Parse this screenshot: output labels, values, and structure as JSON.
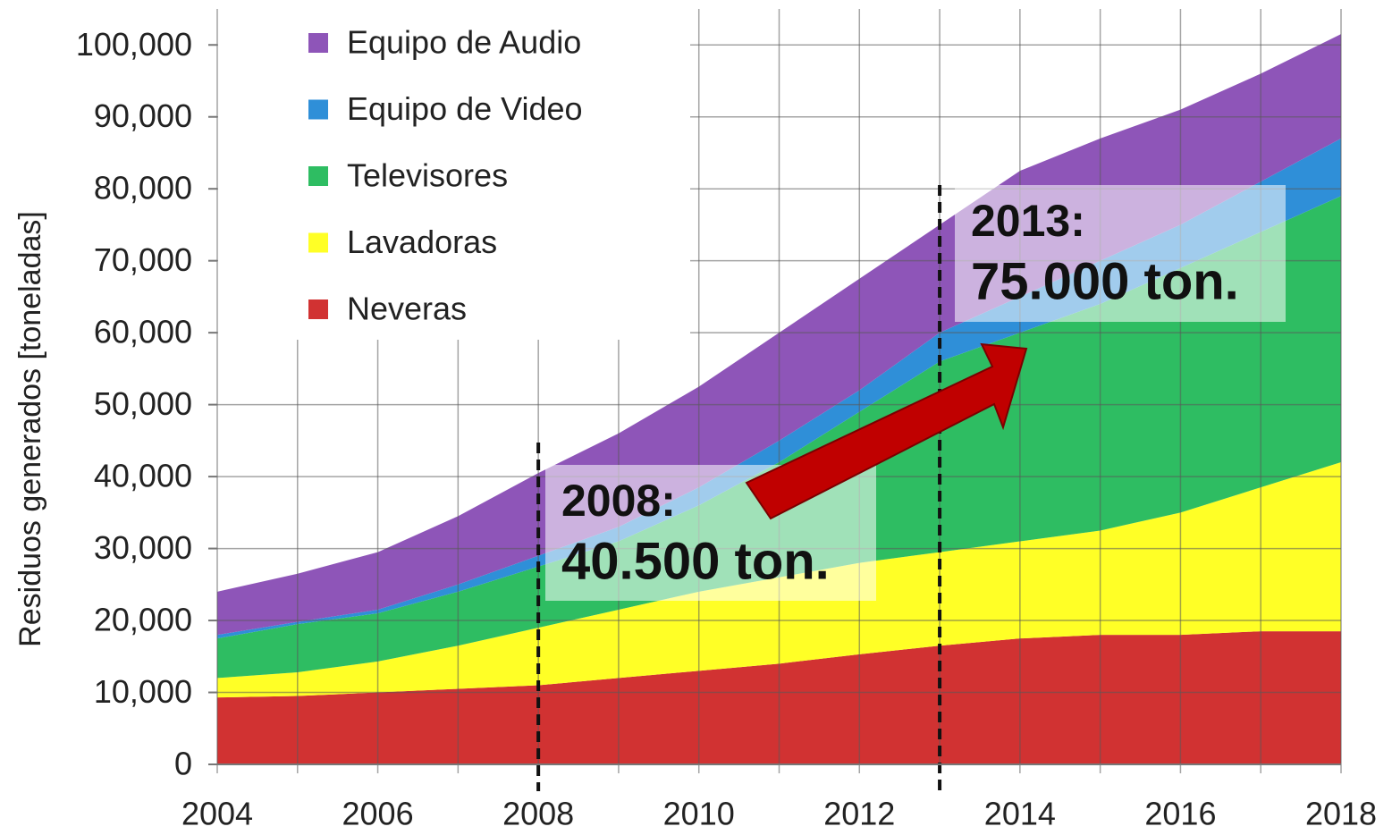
{
  "chart_data": {
    "type": "area",
    "ylabel": "Residuos generados [toneladas]",
    "x": [
      2004,
      2005,
      2006,
      2007,
      2008,
      2009,
      2010,
      2011,
      2012,
      2013,
      2014,
      2015,
      2016,
      2017,
      2018
    ],
    "series": [
      {
        "name": "Neveras",
        "color": "#d13232",
        "values": [
          9300,
          9500,
          10000,
          10500,
          11000,
          12000,
          13000,
          14000,
          15300,
          16500,
          17500,
          18000,
          18000,
          18500,
          18500
        ]
      },
      {
        "name": "Lavadoras",
        "color": "#ffff26",
        "values": [
          2700,
          3300,
          4300,
          6000,
          8000,
          9500,
          11000,
          12000,
          12700,
          13000,
          13500,
          14500,
          17000,
          20000,
          23500
        ]
      },
      {
        "name": "Televisores",
        "color": "#2ebd62",
        "values": [
          5500,
          6700,
          6700,
          7500,
          8500,
          9500,
          12000,
          16000,
          21000,
          26500,
          29000,
          31500,
          34000,
          35500,
          37000
        ]
      },
      {
        "name": "Equipo de Video",
        "color": "#2f8fd8",
        "values": [
          500,
          300,
          500,
          1000,
          1500,
          2000,
          2500,
          3000,
          3000,
          4000,
          5000,
          6000,
          6000,
          7000,
          8000
        ]
      },
      {
        "name": "Equipo de Audio",
        "color": "#8e55b8",
        "values": [
          6000,
          6700,
          8000,
          9500,
          11500,
          13000,
          14000,
          15000,
          15500,
          15000,
          17500,
          17000,
          16000,
          15000,
          14500
        ]
      }
    ],
    "stacked": true,
    "xlim": [
      2004,
      2018
    ],
    "xticks": [
      2004,
      2006,
      2008,
      2010,
      2012,
      2014,
      2016,
      2018
    ],
    "ylim": [
      0,
      105000
    ],
    "yticks": [
      0,
      {
        "value": 10000,
        "label": "10,000"
      },
      {
        "value": 20000,
        "label": "20,000"
      },
      {
        "value": 30000,
        "label": "30,000"
      },
      {
        "value": 40000,
        "label": "40,000"
      },
      {
        "value": 50000,
        "label": "50,000"
      },
      {
        "value": 60000,
        "label": "60,000"
      },
      {
        "value": 70000,
        "label": "70,000"
      },
      {
        "value": 80000,
        "label": "80,000"
      },
      {
        "value": 90000,
        "label": "90,000"
      },
      {
        "value": 100000,
        "label": "100,000"
      }
    ],
    "grid": true,
    "legend": "upper left",
    "annotations": [
      {
        "x": 2008,
        "year": "2008:",
        "text": "40.500 ton."
      },
      {
        "x": 2013,
        "year": "2013:",
        "text": "75.000 ton."
      }
    ]
  }
}
